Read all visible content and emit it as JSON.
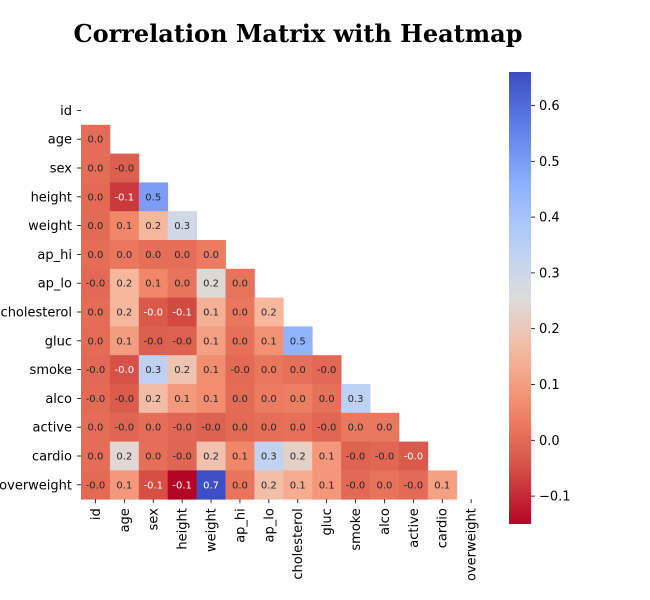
{
  "chart_data": {
    "type": "heatmap",
    "title": "Correlation Matrix with Heatmap",
    "variables": [
      "id",
      "age",
      "sex",
      "height",
      "weight",
      "ap_hi",
      "ap_lo",
      "cholesterol",
      "gluc",
      "smoke",
      "alco",
      "active",
      "cardio",
      "overweight"
    ],
    "mask": "upper-triangle-including-diagonal",
    "matrix": [
      [
        null,
        null,
        null,
        null,
        null,
        null,
        null,
        null,
        null,
        null,
        null,
        null,
        null,
        null
      ],
      [
        0.003,
        null,
        null,
        null,
        null,
        null,
        null,
        null,
        null,
        null,
        null,
        null,
        null,
        null
      ],
      [
        0.003,
        -0.023,
        null,
        null,
        null,
        null,
        null,
        null,
        null,
        null,
        null,
        null,
        null,
        null
      ],
      [
        0.0,
        -0.081,
        0.499,
        null,
        null,
        null,
        null,
        null,
        null,
        null,
        null,
        null,
        null,
        null
      ],
      [
        0.0,
        0.054,
        0.155,
        0.29,
        null,
        null,
        null,
        null,
        null,
        null,
        null,
        null,
        null,
        null
      ],
      [
        0.003,
        0.021,
        0.006,
        0.005,
        0.031,
        null,
        null,
        null,
        null,
        null,
        null,
        null,
        null,
        null
      ],
      [
        -0.003,
        0.154,
        0.052,
        0.017,
        0.244,
        0.016,
        null,
        null,
        null,
        null,
        null,
        null,
        null,
        null
      ],
      [
        0.004,
        0.155,
        -0.036,
        -0.06,
        0.142,
        0.024,
        0.154,
        null,
        null,
        null,
        null,
        null,
        null,
        null
      ],
      [
        0.002,
        0.099,
        -0.021,
        -0.019,
        0.107,
        0.012,
        0.075,
        0.451,
        null,
        null,
        null,
        null,
        null,
        null
      ],
      [
        -0.003,
        -0.048,
        0.338,
        0.187,
        0.068,
        -0.001,
        0.024,
        0.011,
        -0.005,
        null,
        null,
        null,
        null,
        null
      ],
      [
        -0.001,
        -0.03,
        0.17,
        0.094,
        0.067,
        0.001,
        0.033,
        0.036,
        0.011,
        0.341,
        null,
        null,
        null,
        null
      ],
      [
        0.004,
        -0.01,
        0.006,
        -0.007,
        -0.017,
        -0.0,
        0.005,
        0.01,
        -0.007,
        0.026,
        0.025,
        null,
        null,
        null
      ],
      [
        0.004,
        0.24,
        0.008,
        -0.011,
        0.182,
        0.054,
        0.326,
        0.222,
        0.089,
        -0.016,
        -0.007,
        -0.036,
        null,
        null
      ],
      [
        -0.001,
        0.089,
        -0.053,
        -0.149,
        0.655,
        0.017,
        0.172,
        0.132,
        0.087,
        -0.003,
        0.015,
        -0.002,
        0.106,
        null
      ]
    ],
    "vmin": -0.15,
    "vmax": 0.66,
    "colormap": "coolwarm_r",
    "colorbar": {
      "ticks": [
        0.6,
        0.5,
        0.4,
        0.3,
        0.2,
        0.1,
        0.0,
        -0.1
      ],
      "tick_labels": [
        "0.6",
        "0.5",
        "0.4",
        "0.3",
        "0.2",
        "0.1",
        "0.0",
        "−0.1"
      ],
      "placement": "right"
    },
    "annotation_format": "1 decimal",
    "grid": false
  }
}
